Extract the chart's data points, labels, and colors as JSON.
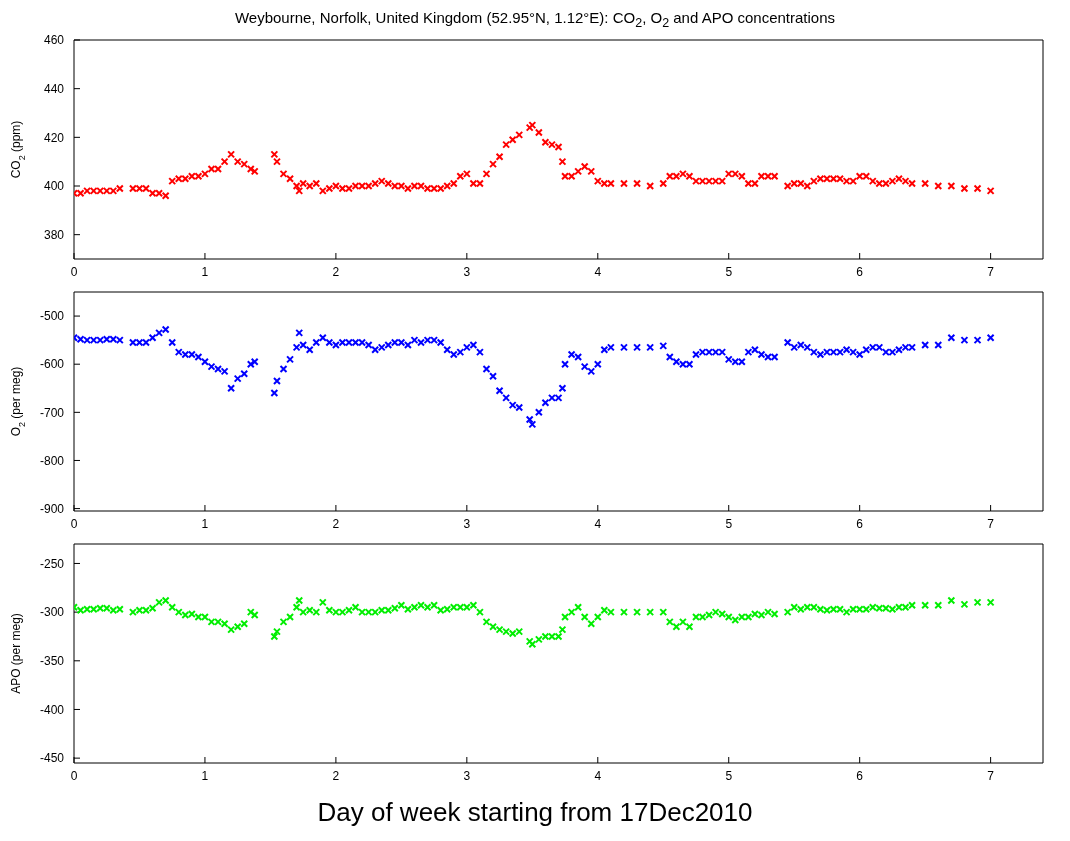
{
  "chart_data": [
    {
      "type": "scatter",
      "title": "Weybourne, Norfolk, United Kingdom (52.95°N, 1.12°E): CO$_{2}$, O$_{2}$ and APO concentrations",
      "ylabel": "CO$_{2}$ (ppm)",
      "marker": "cross",
      "x": [
        0,
        0.05,
        0.1,
        0.15,
        0.2,
        0.25,
        0.3,
        0.35,
        0.45,
        0.5,
        0.55,
        0.6,
        0.65,
        0.7,
        0.75,
        0.8,
        0.85,
        0.9,
        0.95,
        1,
        1.05,
        1.1,
        1.15,
        1.2,
        1.25,
        1.3,
        1.35,
        1.38,
        1.53,
        1.55,
        1.6,
        1.65,
        1.7,
        1.72,
        1.75,
        1.8,
        1.85,
        1.9,
        1.95,
        2,
        2.05,
        2.1,
        2.15,
        2.2,
        2.25,
        2.3,
        2.35,
        2.4,
        2.45,
        2.5,
        2.55,
        2.6,
        2.65,
        2.7,
        2.75,
        2.8,
        2.85,
        2.9,
        2.95,
        3,
        3.05,
        3.1,
        3.15,
        3.2,
        3.25,
        3.3,
        3.35,
        3.4,
        3.48,
        3.5,
        3.55,
        3.6,
        3.65,
        3.7,
        3.73,
        3.75,
        3.8,
        3.85,
        3.9,
        3.95,
        4,
        4.05,
        4.1,
        4.2,
        4.3,
        4.4,
        4.5,
        4.55,
        4.6,
        4.65,
        4.7,
        4.75,
        4.8,
        4.85,
        4.9,
        4.95,
        5,
        5.05,
        5.1,
        5.15,
        5.2,
        5.25,
        5.3,
        5.35,
        5.45,
        5.5,
        5.55,
        5.6,
        5.65,
        5.7,
        5.75,
        5.8,
        5.85,
        5.9,
        5.95,
        6,
        6.05,
        6.1,
        6.15,
        6.2,
        6.25,
        6.3,
        6.35,
        6.4,
        6.5,
        6.6,
        6.7,
        6.8,
        6.9,
        7
      ],
      "series": [
        {
          "color": "#ff0000",
          "values": [
            397,
            397,
            398,
            398,
            398,
            398,
            398,
            399,
            399,
            399,
            399,
            397,
            397,
            396,
            402,
            403,
            403,
            404,
            404,
            405,
            407,
            407,
            410,
            413,
            410,
            409,
            407,
            406,
            413,
            410,
            405,
            403,
            400,
            398,
            401,
            400,
            401,
            398,
            399,
            400,
            399,
            399,
            400,
            400,
            400,
            401,
            402,
            401,
            400,
            400,
            399,
            400,
            400,
            399,
            399,
            399,
            400,
            401,
            404,
            405,
            401,
            401,
            405,
            409,
            412,
            417,
            419,
            421,
            424,
            425,
            422,
            418,
            417,
            416,
            410,
            404,
            404,
            406,
            408,
            406,
            402,
            401,
            401,
            401,
            401,
            400,
            401,
            404,
            404,
            405,
            404,
            402,
            402,
            402,
            402,
            402,
            405,
            405,
            404,
            401,
            401,
            404,
            404,
            404,
            400,
            401,
            401,
            400,
            402,
            403,
            403,
            403,
            403,
            402,
            402,
            404,
            404,
            402,
            401,
            401,
            402,
            403,
            402,
            401,
            401,
            400,
            400,
            399,
            399,
            398
          ]
        }
      ],
      "xlim": [
        0,
        7.4
      ],
      "xticks": [
        0,
        1,
        2,
        3,
        4,
        5,
        6,
        7
      ],
      "ylim": [
        370,
        460
      ],
      "yticks": [
        380,
        400,
        420,
        440,
        460
      ]
    },
    {
      "type": "scatter",
      "ylabel": "O$_{2}$ (per meg)",
      "marker": "cross",
      "x": [
        0,
        0.05,
        0.1,
        0.15,
        0.2,
        0.25,
        0.3,
        0.35,
        0.45,
        0.5,
        0.55,
        0.6,
        0.65,
        0.7,
        0.75,
        0.8,
        0.85,
        0.9,
        0.95,
        1,
        1.05,
        1.1,
        1.15,
        1.2,
        1.25,
        1.3,
        1.35,
        1.38,
        1.53,
        1.55,
        1.6,
        1.65,
        1.7,
        1.72,
        1.75,
        1.8,
        1.85,
        1.9,
        1.95,
        2,
        2.05,
        2.1,
        2.15,
        2.2,
        2.25,
        2.3,
        2.35,
        2.4,
        2.45,
        2.5,
        2.55,
        2.6,
        2.65,
        2.7,
        2.75,
        2.8,
        2.85,
        2.9,
        2.95,
        3,
        3.05,
        3.1,
        3.15,
        3.2,
        3.25,
        3.3,
        3.35,
        3.4,
        3.48,
        3.5,
        3.55,
        3.6,
        3.65,
        3.7,
        3.73,
        3.75,
        3.8,
        3.85,
        3.9,
        3.95,
        4,
        4.05,
        4.1,
        4.2,
        4.3,
        4.4,
        4.5,
        4.55,
        4.6,
        4.65,
        4.7,
        4.75,
        4.8,
        4.85,
        4.9,
        4.95,
        5,
        5.05,
        5.1,
        5.15,
        5.2,
        5.25,
        5.3,
        5.35,
        5.45,
        5.5,
        5.55,
        5.6,
        5.65,
        5.7,
        5.75,
        5.8,
        5.85,
        5.9,
        5.95,
        6,
        6.05,
        6.1,
        6.15,
        6.2,
        6.25,
        6.3,
        6.35,
        6.4,
        6.5,
        6.6,
        6.7,
        6.8,
        6.9,
        7
      ],
      "series": [
        {
          "color": "#0000ff",
          "values": [
            -545,
            -548,
            -550,
            -550,
            -550,
            -548,
            -548,
            -550,
            -555,
            -555,
            -555,
            -545,
            -535,
            -528,
            -555,
            -575,
            -580,
            -580,
            -585,
            -595,
            -605,
            -610,
            -615,
            -650,
            -630,
            -620,
            -600,
            -595,
            -660,
            -635,
            -610,
            -590,
            -565,
            -535,
            -560,
            -570,
            -555,
            -545,
            -555,
            -560,
            -555,
            -555,
            -555,
            -555,
            -560,
            -570,
            -565,
            -560,
            -555,
            -555,
            -560,
            -550,
            -555,
            -550,
            -550,
            -555,
            -570,
            -580,
            -575,
            -565,
            -560,
            -575,
            -610,
            -625,
            -655,
            -670,
            -685,
            -690,
            -715,
            -725,
            -700,
            -680,
            -670,
            -670,
            -650,
            -600,
            -580,
            -585,
            -605,
            -615,
            -600,
            -570,
            -565,
            -565,
            -565,
            -565,
            -562,
            -585,
            -595,
            -600,
            -600,
            -580,
            -575,
            -575,
            -575,
            -575,
            -590,
            -595,
            -595,
            -575,
            -570,
            -580,
            -585,
            -585,
            -555,
            -565,
            -560,
            -565,
            -575,
            -580,
            -575,
            -575,
            -575,
            -570,
            -575,
            -580,
            -570,
            -565,
            -565,
            -575,
            -575,
            -570,
            -565,
            -565,
            -560,
            -560,
            -545,
            -550,
            -550,
            -545
          ]
        }
      ],
      "xlim": [
        0,
        7.4
      ],
      "xticks": [
        0,
        1,
        2,
        3,
        4,
        5,
        6,
        7
      ],
      "ylim": [
        -905,
        -450
      ],
      "yticks": [
        -900,
        -800,
        -700,
        -600,
        -500
      ]
    },
    {
      "type": "scatter",
      "ylabel": "APO (per meg)",
      "xlabel": "Day of week starting from 17Dec2010",
      "marker": "cross",
      "x": [
        0,
        0.05,
        0.1,
        0.15,
        0.2,
        0.25,
        0.3,
        0.35,
        0.45,
        0.5,
        0.55,
        0.6,
        0.65,
        0.7,
        0.75,
        0.8,
        0.85,
        0.9,
        0.95,
        1,
        1.05,
        1.1,
        1.15,
        1.2,
        1.25,
        1.3,
        1.35,
        1.38,
        1.53,
        1.55,
        1.6,
        1.65,
        1.7,
        1.72,
        1.75,
        1.8,
        1.85,
        1.9,
        1.95,
        2,
        2.05,
        2.1,
        2.15,
        2.2,
        2.25,
        2.3,
        2.35,
        2.4,
        2.45,
        2.5,
        2.55,
        2.6,
        2.65,
        2.7,
        2.75,
        2.8,
        2.85,
        2.9,
        2.95,
        3,
        3.05,
        3.1,
        3.15,
        3.2,
        3.25,
        3.3,
        3.35,
        3.4,
        3.48,
        3.5,
        3.55,
        3.6,
        3.65,
        3.7,
        3.73,
        3.75,
        3.8,
        3.85,
        3.9,
        3.95,
        4,
        4.05,
        4.1,
        4.2,
        4.3,
        4.4,
        4.5,
        4.55,
        4.6,
        4.65,
        4.7,
        4.75,
        4.8,
        4.85,
        4.9,
        4.95,
        5,
        5.05,
        5.1,
        5.15,
        5.2,
        5.25,
        5.3,
        5.35,
        5.45,
        5.5,
        5.55,
        5.6,
        5.65,
        5.7,
        5.75,
        5.8,
        5.85,
        5.9,
        5.95,
        6,
        6.05,
        6.1,
        6.15,
        6.2,
        6.25,
        6.3,
        6.35,
        6.4,
        6.5,
        6.6,
        6.7,
        6.8,
        6.9,
        7
      ],
      "series": [
        {
          "color": "#00ee00",
          "values": [
            -295,
            -298,
            -297,
            -297,
            -296,
            -296,
            -298,
            -297,
            -300,
            -298,
            -298,
            -296,
            -290,
            -288,
            -295,
            -300,
            -303,
            -302,
            -305,
            -305,
            -310,
            -310,
            -312,
            -318,
            -315,
            -312,
            -300,
            -303,
            -325,
            -320,
            -310,
            -305,
            -295,
            -288,
            -300,
            -298,
            -300,
            -290,
            -298,
            -300,
            -300,
            -298,
            -295,
            -300,
            -300,
            -300,
            -298,
            -298,
            -296,
            -293,
            -297,
            -295,
            -293,
            -295,
            -293,
            -298,
            -297,
            -295,
            -295,
            -295,
            -293,
            -300,
            -310,
            -315,
            -318,
            -320,
            -322,
            -320,
            -330,
            -333,
            -328,
            -325,
            -325,
            -325,
            -318,
            -305,
            -300,
            -295,
            -305,
            -312,
            -305,
            -298,
            -300,
            -300,
            -300,
            -300,
            -300,
            -310,
            -315,
            -310,
            -315,
            -305,
            -305,
            -303,
            -300,
            -302,
            -305,
            -308,
            -305,
            -305,
            -302,
            -303,
            -300,
            -302,
            -300,
            -295,
            -297,
            -295,
            -295,
            -297,
            -298,
            -297,
            -297,
            -300,
            -297,
            -297,
            -297,
            -295,
            -296,
            -296,
            -297,
            -295,
            -295,
            -293,
            -293,
            -293,
            -288,
            -292,
            -290,
            -290
          ]
        }
      ],
      "xlim": [
        0,
        7.4
      ],
      "xticks": [
        0,
        1,
        2,
        3,
        4,
        5,
        6,
        7
      ],
      "ylim": [
        -455,
        -230
      ],
      "yticks": [
        -450,
        -400,
        -350,
        -300,
        -250
      ]
    }
  ]
}
